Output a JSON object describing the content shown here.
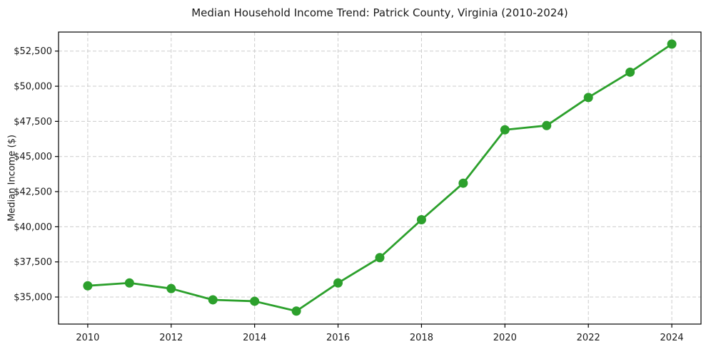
{
  "chart_data": {
    "type": "line",
    "title": "Median Household Income Trend: Patrick County, Virginia (2010-2024)",
    "xlabel": "",
    "ylabel": "Median Income ($)",
    "x": [
      2010,
      2011,
      2012,
      2013,
      2014,
      2015,
      2016,
      2017,
      2018,
      2019,
      2020,
      2021,
      2022,
      2023,
      2024
    ],
    "values": [
      35800,
      36000,
      35600,
      34800,
      34700,
      34000,
      36000,
      37800,
      40500,
      43100,
      46900,
      47200,
      49200,
      51000,
      53000
    ],
    "x_ticks": [
      2010,
      2012,
      2014,
      2016,
      2018,
      2020,
      2022,
      2024
    ],
    "x_tick_labels": [
      "2010",
      "2012",
      "2014",
      "2016",
      "2018",
      "2020",
      "2022",
      "2024"
    ],
    "y_ticks": [
      35000,
      37500,
      40000,
      42500,
      45000,
      47500,
      50000,
      52500
    ],
    "y_tick_labels": [
      "$35,000",
      "$37,500",
      "$40,000",
      "$42,500",
      "$45,000",
      "$47,500",
      "$50,000",
      "$52,500"
    ],
    "xlim": [
      2009.3,
      2024.7
    ],
    "ylim": [
      33075,
      53855
    ],
    "grid": true,
    "legend": "none",
    "styles": {
      "line_color": "#2ca02c",
      "marker_color": "#2ca02c",
      "grid_color": "#cccccc",
      "axis_color": "#000000",
      "text_color": "#1a1a1a",
      "background": "#ffffff",
      "line_width": 2.8,
      "marker_radius": 6.5
    }
  }
}
